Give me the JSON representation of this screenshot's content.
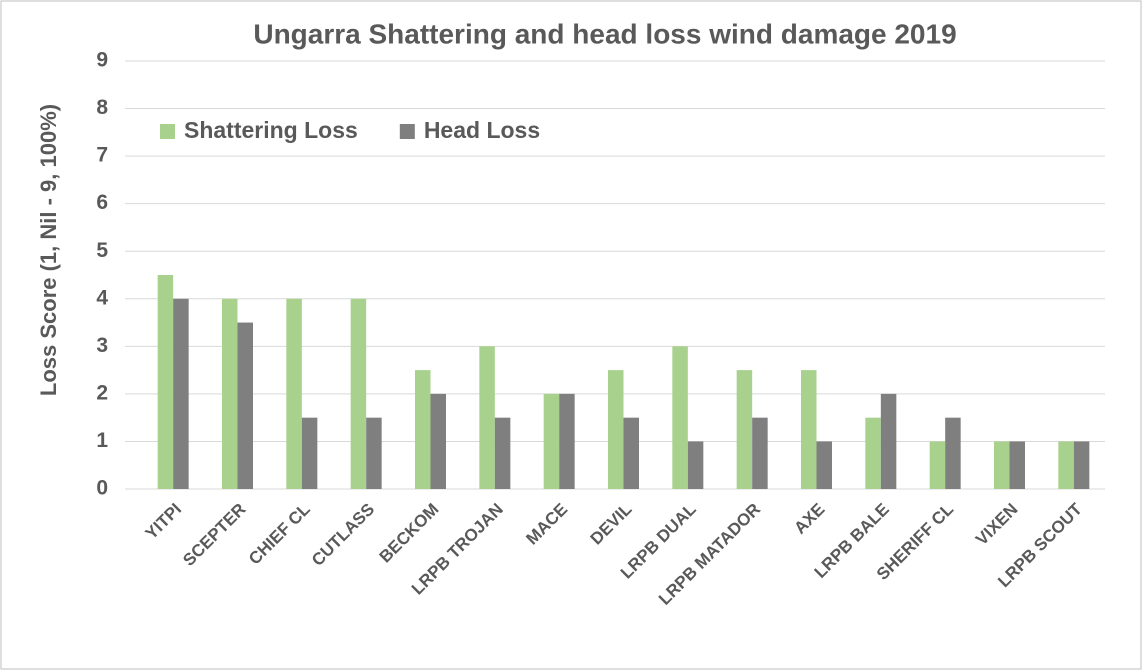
{
  "chart_data": {
    "type": "bar",
    "title": "Ungarra Shattering and head loss wind damage  2019",
    "y_label": "Loss Score (1, Nil - 9, 100%)",
    "categories": [
      "YITPI",
      "SCEPTER",
      "CHIEF CL",
      "CUTLASS",
      "BECKOM",
      "LRPB TROJAN",
      "MACE",
      "DEVIL",
      "LRPB DUAL",
      "LRPB MATADOR",
      "AXE",
      "LRPB BALE",
      "SHERIFF CL",
      "VIXEN",
      "LRPB SCOUT"
    ],
    "series": [
      {
        "name": "Shattering Loss",
        "color": "#a9d18e",
        "values": [
          4.5,
          4,
          4,
          4,
          2.5,
          3,
          2,
          2.5,
          3,
          2.5,
          2.5,
          1.5,
          1,
          1,
          1
        ]
      },
      {
        "name": "Head Loss",
        "color": "#7f7f7f",
        "values": [
          4,
          3.5,
          1.5,
          1.5,
          2,
          1.5,
          2,
          1.5,
          1,
          1.5,
          1,
          2,
          1.5,
          1,
          1
        ]
      }
    ],
    "ylim": [
      0,
      9
    ],
    "yticks": [
      0,
      1,
      2,
      3,
      4,
      5,
      6,
      7,
      8,
      9
    ],
    "grid": true,
    "legend": "top-left"
  }
}
